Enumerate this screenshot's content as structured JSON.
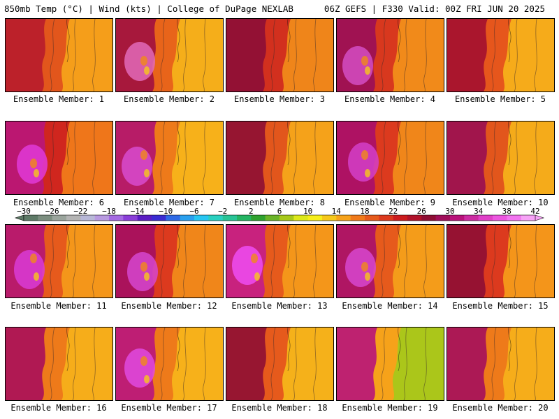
{
  "header": {
    "left_title": "850mb Temp (°C) | Wind (kts) | College of DuPage NEXLAB",
    "right_title": "06Z GEFS | F330 Valid: 00Z FRI JUN 20 2025"
  },
  "members": [
    {
      "label": "Ensemble Member: 1",
      "base": "#e2561c",
      "west": "#b81c2c",
      "east": "#f6a21a",
      "core": null
    },
    {
      "label": "Ensemble Member: 2",
      "base": "#e8641a",
      "west": "#a01040",
      "east": "#f6b21a",
      "core": "#e26ab8"
    },
    {
      "label": "Ensemble Member: 3",
      "base": "#d2301e",
      "west": "#8c0e36",
      "east": "#f08a1a",
      "core": null
    },
    {
      "label": "Ensemble Member: 4",
      "base": "#d8381e",
      "west": "#9a0e58",
      "east": "#f28e1a",
      "core": "#d34dc3"
    },
    {
      "label": "Ensemble Member: 5",
      "base": "#e6561c",
      "west": "#a31030",
      "east": "#f7b01a",
      "core": null
    },
    {
      "label": "Ensemble Member: 6",
      "base": "#d0261e",
      "west": "#b8167a",
      "east": "#f07a1a",
      "core": "#e03ad8"
    },
    {
      "label": "Ensemble Member: 7",
      "base": "#ee7a1a",
      "west": "#b01270",
      "east": "#f7b41a",
      "core": "#d84bcf"
    },
    {
      "label": "Ensemble Member: 8",
      "base": "#e2561c",
      "west": "#8e0e34",
      "east": "#f6a61a",
      "core": null
    },
    {
      "label": "Ensemble Member: 9",
      "base": "#dc3a1e",
      "west": "#a80e6a",
      "east": "#f08a1a",
      "core": "#d43fc8"
    },
    {
      "label": "Ensemble Member: 10",
      "base": "#e2561c",
      "west": "#9a0e52",
      "east": "#f6b01a",
      "core": null
    },
    {
      "label": "Ensemble Member: 11",
      "base": "#e65a1c",
      "west": "#b41474",
      "east": "#f49a1a",
      "core": "#d93bd6"
    },
    {
      "label": "Ensemble Member: 12",
      "base": "#dc3a1e",
      "west": "#a40e62",
      "east": "#f08a1a",
      "core": "#d646d0"
    },
    {
      "label": "Ensemble Member: 13",
      "base": "#e65a1c",
      "west": "#c41c8a",
      "east": "#f49a1a",
      "core": "#ee4cf2"
    },
    {
      "label": "Ensemble Member: 14",
      "base": "#e65a1c",
      "west": "#a80e6c",
      "east": "#f4a01a",
      "core": "#d747cf"
    },
    {
      "label": "Ensemble Member: 15",
      "base": "#dc3a1e",
      "west": "#8e0e34",
      "east": "#f49a1a",
      "core": null
    },
    {
      "label": "Ensemble Member: 16",
      "base": "#ee7a1a",
      "west": "#a80e5a",
      "east": "#f6b01a",
      "core": null
    },
    {
      "label": "Ensemble Member: 17",
      "base": "#ee7a1a",
      "west": "#b8147e",
      "east": "#f7b41a",
      "core": "#e04ae0"
    },
    {
      "label": "Ensemble Member: 18",
      "base": "#e65a1c",
      "west": "#8e0e34",
      "east": "#f6b61a",
      "core": null
    },
    {
      "label": "Ensemble Member: 19",
      "base": "#f6a21a",
      "west": "#b8147a",
      "east": "#a6c81a",
      "core": null
    },
    {
      "label": "Ensemble Member: 20",
      "base": "#ee7a1a",
      "west": "#a40e5c",
      "east": "#f6b01a",
      "core": null
    }
  ],
  "colorbar": {
    "tick_labels": [
      "−30",
      "−26",
      "−22",
      "−18",
      "−14",
      "−10",
      "−6",
      "−2",
      "2",
      "6",
      "10",
      "14",
      "18",
      "22",
      "26",
      "30",
      "34",
      "38",
      "42"
    ],
    "colors": [
      "#5e7a67",
      "#7c8e80",
      "#9aa49c",
      "#b4b4b4",
      "#b8b8d8",
      "#b89ae0",
      "#a46ae2",
      "#8a3ed8",
      "#5a1cc2",
      "#3a2cd2",
      "#2e6ae6",
      "#2aa0ee",
      "#28c6f2",
      "#2ad0c0",
      "#28c496",
      "#24b462",
      "#2ea22e",
      "#6ab428",
      "#a6c81a",
      "#dce81a",
      "#f6ee1a",
      "#f6c81a",
      "#f6a21a",
      "#f07a1a",
      "#e65a1c",
      "#dc3a1e",
      "#cc1c1e",
      "#b0122a",
      "#8e0e34",
      "#a00e5a",
      "#b8127a",
      "#cc2ca2",
      "#e040c8",
      "#ec56e0",
      "#f274f0",
      "#f6a2f6"
    ]
  }
}
